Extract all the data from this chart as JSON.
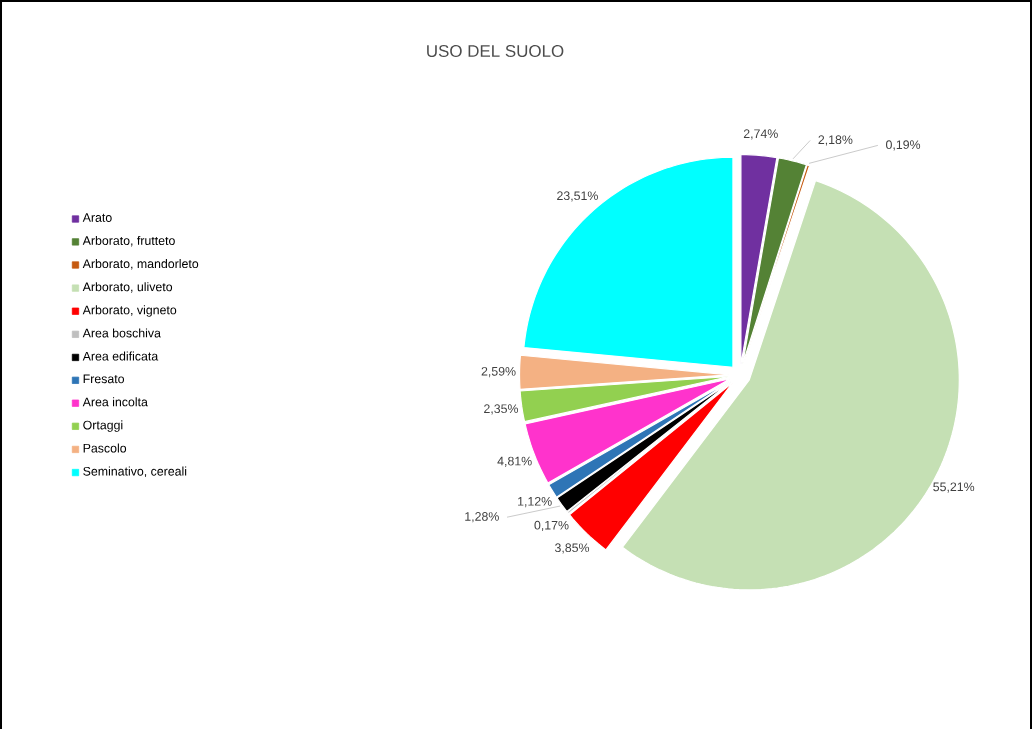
{
  "chart_data": {
    "type": "pie",
    "title": "USO DEL SUOLO",
    "categories": [
      "Arato",
      "Arborato, frutteto",
      "Arborato, mandorleto",
      "Arborato, uliveto",
      "Arborato, vigneto",
      "Area boschiva",
      "Area edificata",
      "Fresato",
      "Area incolta",
      "Ortaggi",
      "Pascolo",
      "Seminativo, cereali"
    ],
    "values": [
      2.74,
      2.18,
      0.19,
      55.21,
      3.85,
      0.17,
      1.28,
      1.12,
      4.81,
      2.35,
      2.59,
      23.51
    ],
    "colors": [
      "#7030a0",
      "#548235",
      "#c55a11",
      "#c5e0b4",
      "#ff0000",
      "#bfbfbf",
      "#000000",
      "#2e75b6",
      "#ff33cc",
      "#92d050",
      "#f4b183",
      "#00ffff"
    ],
    "value_labels": [
      "2,74%",
      "2,18%",
      "0,19%",
      "55,21%",
      "3,85%",
      "0,17%",
      "1,28%",
      "1,12%",
      "4,81%",
      "2,35%",
      "2,59%",
      "23,51%"
    ],
    "legend": "left"
  }
}
